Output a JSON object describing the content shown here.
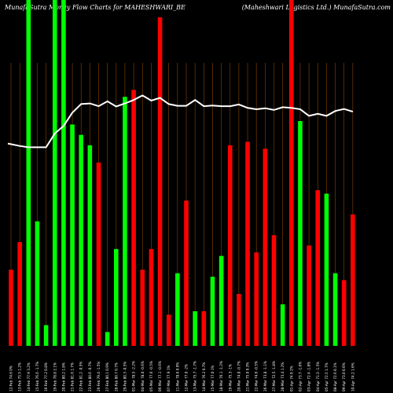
{
  "chart_data": {
    "type": "bar",
    "title_left": "MunafaSutra  Money Flow  Charts for MAHESHWARI_BE",
    "title_right": "(Maheshwari   Logistics   Ltd.) MunafaSutra.com",
    "colors": {
      "up": "#00ff00",
      "down": "#ff0000",
      "line": "#ffffff",
      "grid": "#8b4500",
      "background": "#000000"
    },
    "ylim": [
      0,
      100
    ],
    "categories": [
      "12-Feb 74.6 0%",
      "13-Feb 75.5 1.2%",
      "14-Feb 77.9 3.2%",
      "15-Feb 76.6 -1.7%",
      "16-Feb 77.2 0.8%",
      "19-Feb 78.8 2.1%",
      "20-Feb 80.2 1.8%",
      "21-Feb 81.6 1.7%",
      "22-Feb 81.2 -0.5%",
      "23-Feb 80.6 -0.7%",
      "26-Feb 79.4 -1.5%",
      "27-Feb 80.1 0.9%",
      "28-Feb 80.7 0.7%",
      "29-Feb 80.3 -0.5%",
      "01-Mar 78.5 -2.2%",
      "04-Mar 78.0 -0.6%",
      "05-Mar 77.6 -0.5%",
      "06-Mar 77.1 -0.6%",
      "07-Mar 77.9 1%",
      "11-Mar 78.6 0.9%",
      "12-Mar 77.0 -2%",
      "13-Mar 75.7 -1.7%",
      "14-Mar 76.2 0.7%",
      "15-Mar 77.0 1%",
      "18-Mar 76.1 -1.2%",
      "19-Mar 75.3 -1%",
      "20-Mar 74.8 -0.7%",
      "21-Mar 75.0 0.3%",
      "22-Mar 74.6 -0.5%",
      "26-Mar 73.8 -1.1%",
      "27-Mar 72.5 -1.8%",
      "28-Mar 73.4 1.2%",
      "01-Apr 74.9 2%",
      "02-Apr 73.7 -1.6%",
      "03-Apr 72.4 -1.8%",
      "04-Apr 71.3 -1.5%",
      "05-Apr 72.5 1.7%",
      "08-Apr 72.6 0.1%",
      "09-Apr 73.0 0.6%",
      "10-Apr 74.2 1.6%"
    ],
    "series": [
      {
        "type": "bar",
        "values": [
          22,
          30,
          100,
          36,
          6,
          100,
          100,
          64,
          61,
          58,
          53,
          4,
          28,
          72,
          74,
          22,
          28,
          95,
          9,
          21,
          42,
          10,
          10,
          20,
          26,
          58,
          15,
          59,
          27,
          57,
          32,
          12,
          100,
          65,
          29,
          45,
          44,
          21,
          19,
          38
        ],
        "direction": [
          "down",
          "down",
          "up",
          "up",
          "up",
          "up",
          "up",
          "up",
          "up",
          "up",
          "down",
          "up",
          "up",
          "up",
          "down",
          "down",
          "down",
          "down",
          "down",
          "up",
          "down",
          "up",
          "down",
          "up",
          "up",
          "down",
          "down",
          "down",
          "down",
          "down",
          "down",
          "up",
          "down",
          "up",
          "down",
          "down",
          "up",
          "up",
          "down",
          "down"
        ]
      },
      {
        "type": "line",
        "values": [
          58.5,
          57.8,
          57.4,
          57.4,
          57.4,
          61.4,
          63.6,
          67.4,
          69.9,
          70.1,
          69.3,
          70.7,
          69.2,
          70.1,
          71.1,
          72.4,
          70.9,
          71.7,
          69.9,
          69.4,
          69.4,
          71.1,
          69.3,
          69.5,
          69.3,
          69.3,
          69.8,
          68.8,
          68.4,
          68.7,
          68.2,
          69.0,
          68.8,
          68.4,
          66.5,
          67.1,
          66.5,
          67.9,
          68.5,
          67.7
        ]
      }
    ]
  }
}
